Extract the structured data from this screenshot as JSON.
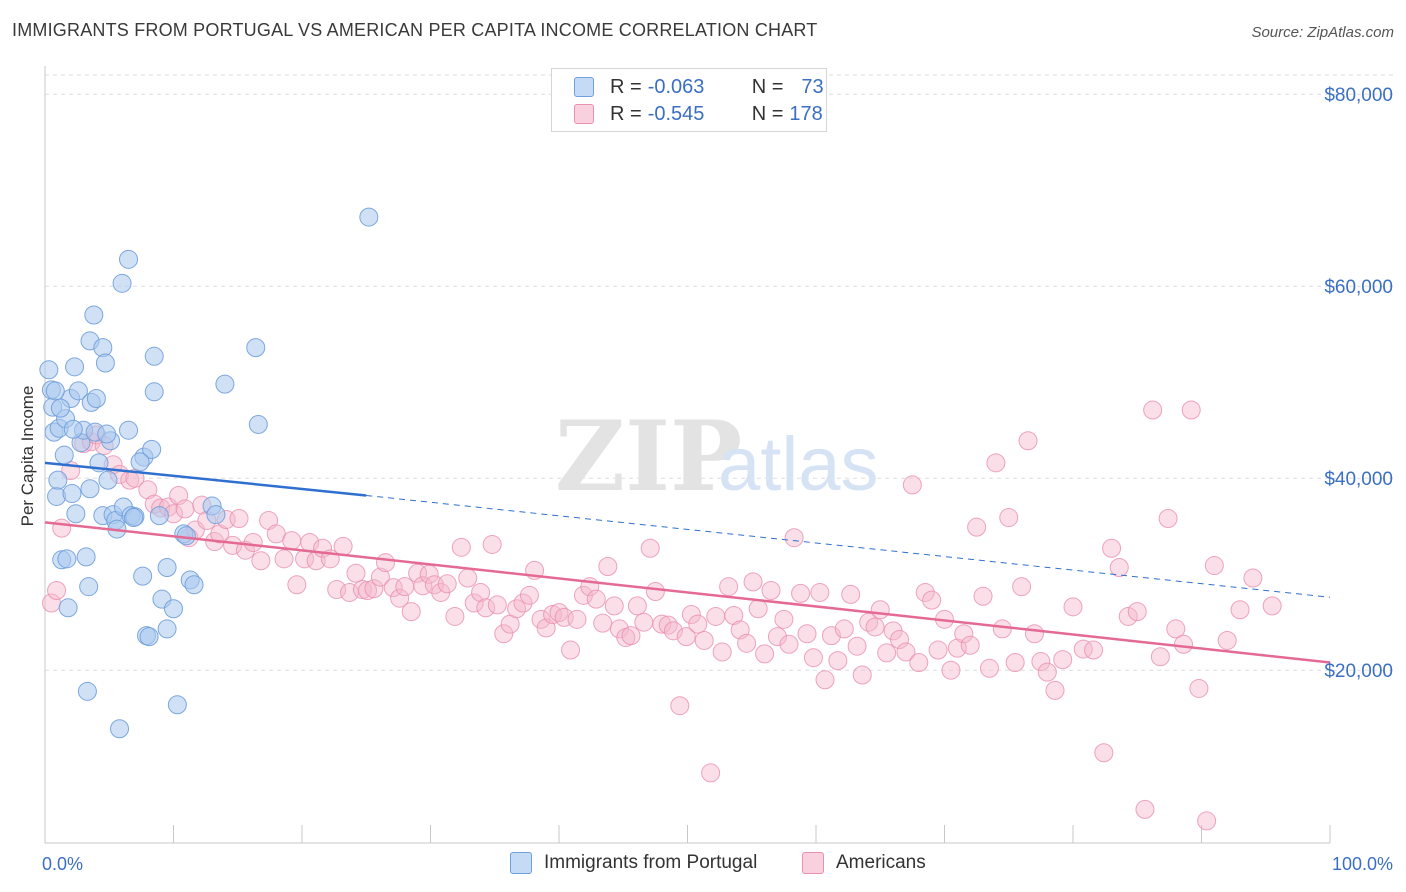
{
  "title": "IMMIGRANTS FROM PORTUGAL VS AMERICAN PER CAPITA INCOME CORRELATION CHART",
  "source": "Source: ZipAtlas.com",
  "watermark": {
    "zip": "ZIP",
    "atlas": "atlas"
  },
  "legend_top": [
    {
      "r_label": "R = ",
      "r_value": "-0.063",
      "n_label": "N = ",
      "n_value": "73",
      "color": "#a9c8ee"
    },
    {
      "r_label": "R = ",
      "r_value": "-0.545",
      "n_label": "N = ",
      "n_value": "178",
      "color": "#f4b8cb"
    }
  ],
  "legend_bottom": [
    {
      "label": "Immigrants from Portugal",
      "color": "#a9c8ee"
    },
    {
      "label": "Americans",
      "color": "#f4b8cb"
    }
  ],
  "colors": {
    "blue_point": "#a9c8ee",
    "blue_stroke": "#6f9fdc",
    "blue_line": "#2f6fd0",
    "pink_point": "#f4b8cb",
    "pink_stroke": "#ea8fae",
    "pink_line": "#e46a94",
    "axis_text": "#3b6fc4",
    "grid": "#dddddd"
  },
  "chart_data": {
    "type": "scatter",
    "title": "IMMIGRANTS FROM PORTUGAL VS AMERICAN PER CAPITA INCOME CORRELATION CHART",
    "xlabel": "",
    "ylabel": "Per Capita Income",
    "xlim": [
      0,
      100
    ],
    "ylim": [
      2000,
      82000
    ],
    "x_tick_labels": [
      "0.0%",
      "100.0%"
    ],
    "y_ticks": [
      20000,
      40000,
      60000,
      80000
    ],
    "y_tick_labels": [
      "$20,000",
      "$40,000",
      "$60,000",
      "$80,000"
    ],
    "grid": "horizontal dashed",
    "legend": "top-center",
    "series": [
      {
        "name": "Immigrants from Portugal",
        "color": "#a9c8ee",
        "trend": {
          "x": [
            0,
            25
          ],
          "y": [
            41600,
            38200
          ],
          "dashed_to_x": 100,
          "dashed_end_y": 27600
        },
        "points": [
          [
            0.3,
            51300
          ],
          [
            0.5,
            49200
          ],
          [
            0.6,
            47400
          ],
          [
            0.7,
            44800
          ],
          [
            0.9,
            38100
          ],
          [
            1.0,
            39800
          ],
          [
            1.1,
            45200
          ],
          [
            1.3,
            31500
          ],
          [
            1.5,
            42400
          ],
          [
            1.6,
            46200
          ],
          [
            1.7,
            31600
          ],
          [
            1.8,
            26500
          ],
          [
            2.0,
            48300
          ],
          [
            2.1,
            38400
          ],
          [
            2.3,
            51600
          ],
          [
            2.4,
            36300
          ],
          [
            2.6,
            49100
          ],
          [
            2.8,
            43700
          ],
          [
            3.0,
            45000
          ],
          [
            3.2,
            31800
          ],
          [
            3.3,
            17800
          ],
          [
            3.5,
            54300
          ],
          [
            3.5,
            38900
          ],
          [
            3.6,
            47900
          ],
          [
            3.8,
            57000
          ],
          [
            3.9,
            44800
          ],
          [
            4.0,
            48300
          ],
          [
            4.2,
            41600
          ],
          [
            4.5,
            53600
          ],
          [
            4.5,
            36100
          ],
          [
            4.7,
            52000
          ],
          [
            4.9,
            39800
          ],
          [
            5.1,
            43900
          ],
          [
            5.3,
            36200
          ],
          [
            5.5,
            35600
          ],
          [
            5.6,
            34700
          ],
          [
            5.8,
            13900
          ],
          [
            6.0,
            60300
          ],
          [
            6.1,
            37000
          ],
          [
            6.5,
            62800
          ],
          [
            6.5,
            45000
          ],
          [
            6.7,
            36100
          ],
          [
            7.0,
            36000
          ],
          [
            7.6,
            29800
          ],
          [
            7.7,
            42200
          ],
          [
            7.9,
            23600
          ],
          [
            8.1,
            23500
          ],
          [
            8.3,
            43000
          ],
          [
            8.5,
            49000
          ],
          [
            8.5,
            52700
          ],
          [
            8.9,
            36100
          ],
          [
            9.1,
            27400
          ],
          [
            9.5,
            24300
          ],
          [
            10.0,
            26400
          ],
          [
            10.3,
            16400
          ],
          [
            10.8,
            34200
          ],
          [
            11.3,
            29400
          ],
          [
            11.6,
            28900
          ],
          [
            13.0,
            37100
          ],
          [
            13.3,
            36200
          ],
          [
            14.0,
            49800
          ],
          [
            16.4,
            53600
          ],
          [
            16.6,
            45600
          ],
          [
            25.2,
            67200
          ],
          [
            1.2,
            47300
          ],
          [
            2.2,
            45100
          ],
          [
            4.8,
            44600
          ],
          [
            0.8,
            49100
          ],
          [
            9.5,
            30700
          ],
          [
            11.0,
            34000
          ],
          [
            7.4,
            41700
          ],
          [
            6.9,
            35900
          ],
          [
            3.4,
            28700
          ]
        ]
      },
      {
        "name": "Americans",
        "color": "#f4b8cb",
        "trend": {
          "x": [
            0,
            100
          ],
          "y": [
            35400,
            20800
          ]
        },
        "points": [
          [
            0.5,
            27000
          ],
          [
            0.9,
            28300
          ],
          [
            1.3,
            34800
          ],
          [
            2.0,
            40800
          ],
          [
            3.0,
            43600
          ],
          [
            3.6,
            43800
          ],
          [
            4.0,
            44500
          ],
          [
            4.6,
            43400
          ],
          [
            5.3,
            41400
          ],
          [
            5.8,
            40400
          ],
          [
            6.6,
            39800
          ],
          [
            7.0,
            40000
          ],
          [
            8.0,
            38800
          ],
          [
            8.5,
            37300
          ],
          [
            9.0,
            36900
          ],
          [
            9.6,
            37000
          ],
          [
            10.0,
            36300
          ],
          [
            10.4,
            38200
          ],
          [
            10.9,
            36800
          ],
          [
            11.2,
            33800
          ],
          [
            11.7,
            34600
          ],
          [
            12.2,
            37200
          ],
          [
            12.6,
            35600
          ],
          [
            13.2,
            33400
          ],
          [
            13.6,
            34200
          ],
          [
            14.1,
            35700
          ],
          [
            14.6,
            33000
          ],
          [
            15.1,
            35800
          ],
          [
            15.6,
            32500
          ],
          [
            16.2,
            33300
          ],
          [
            16.8,
            31400
          ],
          [
            17.4,
            35600
          ],
          [
            18.0,
            34200
          ],
          [
            18.6,
            31600
          ],
          [
            19.2,
            33500
          ],
          [
            19.6,
            28900
          ],
          [
            20.2,
            31600
          ],
          [
            20.6,
            33300
          ],
          [
            21.1,
            31400
          ],
          [
            21.6,
            32700
          ],
          [
            22.2,
            31600
          ],
          [
            22.7,
            28400
          ],
          [
            23.2,
            32900
          ],
          [
            23.7,
            28100
          ],
          [
            24.2,
            30100
          ],
          [
            24.7,
            28400
          ],
          [
            25.1,
            28300
          ],
          [
            25.6,
            28500
          ],
          [
            26.1,
            29700
          ],
          [
            26.5,
            31200
          ],
          [
            27.1,
            28600
          ],
          [
            27.6,
            27500
          ],
          [
            28.0,
            28700
          ],
          [
            28.5,
            26100
          ],
          [
            29.0,
            30100
          ],
          [
            29.4,
            28800
          ],
          [
            29.9,
            30000
          ],
          [
            30.3,
            28900
          ],
          [
            30.8,
            28100
          ],
          [
            31.3,
            29000
          ],
          [
            31.9,
            25600
          ],
          [
            32.4,
            32800
          ],
          [
            32.9,
            29600
          ],
          [
            33.4,
            27000
          ],
          [
            33.9,
            28100
          ],
          [
            34.3,
            26500
          ],
          [
            34.8,
            33100
          ],
          [
            35.2,
            26800
          ],
          [
            35.7,
            23800
          ],
          [
            36.2,
            24800
          ],
          [
            36.7,
            26400
          ],
          [
            37.2,
            27000
          ],
          [
            37.7,
            27800
          ],
          [
            38.1,
            30400
          ],
          [
            38.6,
            25300
          ],
          [
            39.0,
            24400
          ],
          [
            39.5,
            25800
          ],
          [
            40.0,
            26000
          ],
          [
            40.4,
            25500
          ],
          [
            40.9,
            22100
          ],
          [
            41.4,
            25300
          ],
          [
            41.9,
            27800
          ],
          [
            42.4,
            28700
          ],
          [
            42.9,
            27400
          ],
          [
            43.4,
            24900
          ],
          [
            43.8,
            30800
          ],
          [
            44.3,
            26700
          ],
          [
            44.7,
            24300
          ],
          [
            45.2,
            23400
          ],
          [
            45.6,
            23600
          ],
          [
            46.1,
            26700
          ],
          [
            46.6,
            25000
          ],
          [
            47.1,
            32700
          ],
          [
            47.5,
            28200
          ],
          [
            48.0,
            24800
          ],
          [
            48.5,
            24700
          ],
          [
            48.9,
            24100
          ],
          [
            49.4,
            16300
          ],
          [
            49.9,
            23500
          ],
          [
            50.3,
            25800
          ],
          [
            50.8,
            24800
          ],
          [
            51.3,
            23100
          ],
          [
            51.8,
            9300
          ],
          [
            52.2,
            25600
          ],
          [
            52.7,
            21900
          ],
          [
            53.2,
            28700
          ],
          [
            53.6,
            25700
          ],
          [
            54.1,
            24200
          ],
          [
            54.6,
            22800
          ],
          [
            55.1,
            29200
          ],
          [
            55.5,
            26400
          ],
          [
            56.0,
            21700
          ],
          [
            56.5,
            28300
          ],
          [
            57.0,
            23500
          ],
          [
            57.5,
            25300
          ],
          [
            57.9,
            22700
          ],
          [
            58.3,
            33800
          ],
          [
            58.8,
            28000
          ],
          [
            59.3,
            23800
          ],
          [
            59.8,
            21300
          ],
          [
            60.3,
            28100
          ],
          [
            60.7,
            19000
          ],
          [
            61.2,
            23600
          ],
          [
            61.7,
            21000
          ],
          [
            62.2,
            24300
          ],
          [
            62.7,
            27900
          ],
          [
            63.2,
            22500
          ],
          [
            63.6,
            19500
          ],
          [
            64.1,
            25000
          ],
          [
            64.6,
            24500
          ],
          [
            65.0,
            26300
          ],
          [
            65.5,
            21800
          ],
          [
            66.0,
            24100
          ],
          [
            66.5,
            23200
          ],
          [
            67.0,
            21900
          ],
          [
            67.5,
            39300
          ],
          [
            68.0,
            20800
          ],
          [
            68.5,
            28100
          ],
          [
            69.0,
            27300
          ],
          [
            69.5,
            22100
          ],
          [
            70.0,
            25300
          ],
          [
            70.5,
            20000
          ],
          [
            71.0,
            22300
          ],
          [
            71.5,
            23800
          ],
          [
            72.0,
            22600
          ],
          [
            72.5,
            34900
          ],
          [
            73.0,
            27700
          ],
          [
            73.5,
            20200
          ],
          [
            74.0,
            41600
          ],
          [
            74.5,
            24300
          ],
          [
            75.0,
            35900
          ],
          [
            75.5,
            20800
          ],
          [
            76.0,
            28700
          ],
          [
            76.5,
            43900
          ],
          [
            77.0,
            23800
          ],
          [
            77.5,
            20900
          ],
          [
            78.0,
            19800
          ],
          [
            78.6,
            17900
          ],
          [
            79.2,
            21100
          ],
          [
            80.0,
            26600
          ],
          [
            80.8,
            22200
          ],
          [
            81.6,
            22100
          ],
          [
            82.4,
            11400
          ],
          [
            83.0,
            32700
          ],
          [
            83.6,
            30700
          ],
          [
            84.3,
            25600
          ],
          [
            85.0,
            26100
          ],
          [
            85.6,
            5500
          ],
          [
            86.2,
            47100
          ],
          [
            86.8,
            21400
          ],
          [
            87.4,
            35800
          ],
          [
            88.0,
            24300
          ],
          [
            88.6,
            22700
          ],
          [
            89.2,
            47100
          ],
          [
            89.8,
            18100
          ],
          [
            90.4,
            4300
          ],
          [
            91.0,
            30900
          ],
          [
            92.0,
            23100
          ],
          [
            93.0,
            26300
          ],
          [
            94.0,
            29600
          ],
          [
            95.5,
            26700
          ]
        ]
      }
    ]
  }
}
